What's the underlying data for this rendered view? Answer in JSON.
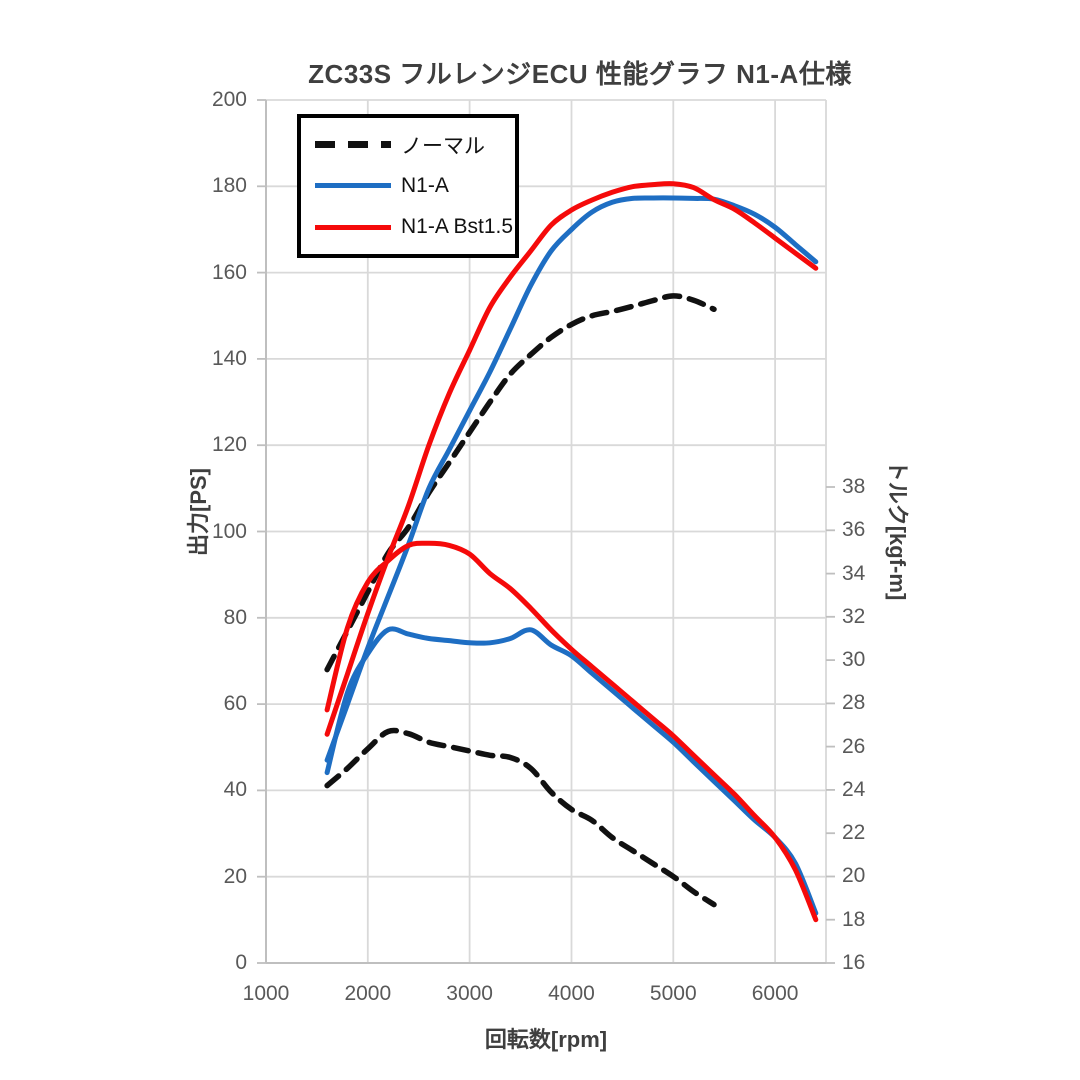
{
  "title": "ZC33S フルレンジECU 性能グラフ N1-A仕様",
  "colors": {
    "normal": "#111111",
    "n1a_blue": "#1e6ec3",
    "bst_red": "#f50a0a",
    "gridline": "#d9d9d9",
    "axis_line": "#bfbfbf",
    "tick_text": "#595959",
    "title_text": "#3f3f3f",
    "background": "#ffffff"
  },
  "chart_data": {
    "type": "line",
    "title": "ZC33S フルレンジECU 性能グラフ N1-A仕様",
    "x_axis": {
      "title": "回転数[rpm]",
      "ticks": [
        1000,
        2000,
        3000,
        4000,
        5000,
        6000
      ],
      "range": [
        1000,
        6500
      ],
      "grid": true
    },
    "y_axis_left": {
      "title": "出力[PS]",
      "ticks": [
        0,
        20,
        40,
        60,
        80,
        100,
        120,
        140,
        160,
        180,
        200
      ],
      "range": [
        0,
        200
      ],
      "grid": true
    },
    "y_axis_right": {
      "title": "トルク[kgf-m]",
      "ticks": [
        16,
        18,
        20,
        22,
        24,
        26,
        28,
        30,
        32,
        34,
        36,
        38
      ],
      "range": [
        16,
        56
      ],
      "grid": false
    },
    "legend_position": "top-left-overlay",
    "rpm": [
      1600,
      1800,
      2000,
      2200,
      2400,
      2600,
      2800,
      3000,
      3200,
      3400,
      3600,
      3800,
      4000,
      4200,
      4400,
      4600,
      4800,
      5000,
      5200,
      5400,
      5600,
      5800,
      6000,
      6200,
      6400
    ],
    "series": [
      {
        "name": "ノーマル",
        "kind": "power",
        "axis": "left",
        "color": "#111111",
        "dash": true,
        "width": 5.5,
        "values": [
          68,
          77,
          86,
          95,
          101,
          109,
          116,
          123,
          130,
          136.5,
          141,
          145,
          148,
          150,
          151,
          152.2,
          153.5,
          154.6,
          153.6,
          151.5
        ]
      },
      {
        "name": "N1-A",
        "kind": "power",
        "axis": "left",
        "color": "#1e6ec3",
        "dash": false,
        "width": 5,
        "values": [
          47,
          60,
          73,
          85,
          97,
          110,
          119,
          128,
          137,
          147,
          157,
          165,
          170,
          174,
          176.3,
          177.2,
          177.3,
          177.3,
          177.2,
          177.0,
          175.5,
          173.5,
          170.5,
          166.5,
          162.5
        ]
      },
      {
        "name": "N1-A Bst1.5",
        "kind": "power",
        "axis": "left",
        "color": "#f50a0a",
        "dash": false,
        "width": 5,
        "values": [
          53,
          67,
          81,
          94,
          106,
          120,
          132,
          142,
          152,
          159,
          165,
          171,
          174.5,
          176.8,
          178.6,
          179.9,
          180.4,
          180.6,
          179.7,
          176.9,
          174.7,
          171.5,
          168,
          164.5,
          161
        ]
      },
      {
        "name": "ノーマル",
        "kind": "torque",
        "axis": "right",
        "color": "#111111",
        "dash": true,
        "width": 5.5,
        "values": [
          24.2,
          25.0,
          25.9,
          26.7,
          26.6,
          26.2,
          26.0,
          25.8,
          25.6,
          25.5,
          25.0,
          23.9,
          23.1,
          22.6,
          21.8,
          21.2,
          20.6,
          20.0,
          19.3,
          18.7
        ]
      },
      {
        "name": "N1-A",
        "kind": "torque",
        "axis": "right",
        "color": "#1e6ec3",
        "dash": false,
        "width": 5,
        "values": [
          24.8,
          28.5,
          30.3,
          31.4,
          31.2,
          31.0,
          30.9,
          30.8,
          30.8,
          31.0,
          31.4,
          30.7,
          30.2,
          29.4,
          28.6,
          27.8,
          27.0,
          26.2,
          25.3,
          24.4,
          23.5,
          22.6,
          21.8,
          20.6,
          18.3
        ]
      },
      {
        "name": "N1-A Bst1.5",
        "kind": "torque",
        "axis": "right",
        "color": "#f50a0a",
        "dash": false,
        "width": 5,
        "values": [
          27.7,
          31.5,
          33.6,
          34.6,
          35.3,
          35.4,
          35.3,
          34.9,
          34.0,
          33.3,
          32.4,
          31.4,
          30.5,
          29.7,
          28.9,
          28.1,
          27.3,
          26.5,
          25.6,
          24.7,
          23.8,
          22.8,
          21.8,
          20.3,
          18.0
        ]
      }
    ]
  }
}
